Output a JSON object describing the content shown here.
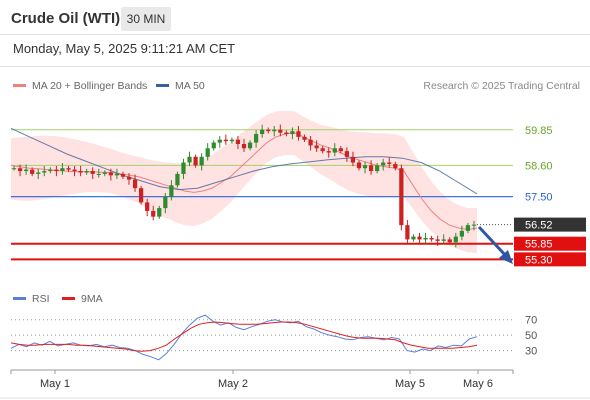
{
  "header": {
    "title": "Crude Oil (WTI)",
    "timeframe": "30 MIN"
  },
  "datetime": "Monday, May 5, 2025 9:11:21 AM CET",
  "legend": {
    "bollinger": {
      "label": "MA 20 + Bollinger Bands",
      "color": "#f08080"
    },
    "ma50": {
      "label": "MA 50",
      "color": "#3a5f9e"
    }
  },
  "credit": "Research © 2025 Trading Central",
  "rsi_legend": {
    "rsi": {
      "label": "RSI",
      "color": "#5b7fd8"
    },
    "ma9": {
      "label": "9MA",
      "color": "#e02020"
    }
  },
  "colors": {
    "green_level": "#a6d16a",
    "blue_level": "#2a62d9",
    "red_level": "#e01010",
    "current_price_bg": "#333333",
    "candle_up": "#2e8b2e",
    "candle_down": "#cc2222",
    "arrow": "#2d57a6",
    "band_fill": "#ffd8d8"
  },
  "chart_data": [
    {
      "type": "line",
      "title": "Crude Oil (WTI)",
      "timeframe": "30 MIN",
      "x_ticks": [
        "May 1",
        "May 2",
        "May 5",
        "May 6"
      ],
      "ylim": [
        54.4,
        61.0
      ],
      "levels": [
        {
          "value": 59.85,
          "label": "59.85",
          "kind": "resistance"
        },
        {
          "value": 58.6,
          "label": "58.60",
          "kind": "resistance"
        },
        {
          "value": 57.5,
          "label": "57.50",
          "kind": "pivot"
        },
        {
          "value": 56.52,
          "label": "56.52",
          "kind": "current"
        },
        {
          "value": 55.85,
          "label": "55.85",
          "kind": "support"
        },
        {
          "value": 55.3,
          "label": "55.30",
          "kind": "support"
        }
      ],
      "series": [
        {
          "name": "Price",
          "values": [
            58.5,
            58.4,
            58.45,
            58.3,
            58.35,
            58.4,
            58.45,
            58.4,
            58.5,
            58.45,
            58.4,
            58.35,
            58.4,
            58.3,
            58.3,
            58.35,
            58.25,
            58.3,
            58.2,
            58.1,
            57.8,
            57.3,
            57.0,
            56.8,
            57.1,
            57.5,
            57.9,
            58.3,
            58.7,
            58.9,
            58.6,
            58.9,
            59.2,
            59.4,
            59.5,
            59.45,
            59.5,
            59.35,
            59.2,
            59.4,
            59.7,
            59.85,
            59.8,
            59.85,
            59.75,
            59.7,
            59.8,
            59.6,
            59.5,
            59.3,
            59.2,
            59.1,
            59.05,
            59.2,
            59.1,
            58.9,
            58.7,
            58.5,
            58.6,
            58.4,
            58.6,
            58.7,
            58.65,
            58.5,
            56.5,
            56.0,
            56.1,
            56.0,
            56.05,
            56.0,
            55.95,
            56.0,
            55.9,
            56.1,
            56.3,
            56.5,
            56.52
          ]
        },
        {
          "name": "MA 20",
          "values": [
            58.6,
            58.55,
            58.5,
            58.48,
            58.45,
            58.42,
            58.4,
            58.38,
            58.38,
            58.37,
            58.36,
            58.35,
            58.3,
            58.25,
            58.2,
            58.1,
            58.0,
            57.9,
            57.8,
            57.7,
            57.65,
            57.7,
            57.8,
            58.0,
            58.2,
            58.5,
            58.8,
            59.1,
            59.4,
            59.6,
            59.7,
            59.75,
            59.6,
            59.45,
            59.3,
            59.2,
            59.05,
            58.9,
            58.8,
            58.7,
            58.6,
            58.55,
            58.5,
            58.4,
            57.9,
            57.4,
            57.0,
            56.7,
            56.5,
            56.4,
            56.35,
            56.4
          ]
        },
        {
          "name": "MA 50",
          "values": [
            59.9,
            59.6,
            59.3,
            59.0,
            58.75,
            58.5,
            58.25,
            58.05,
            57.85,
            57.75,
            57.8,
            58.0,
            58.2,
            58.4,
            58.55,
            58.65,
            58.72,
            58.8,
            58.85,
            58.9,
            58.9,
            58.85,
            58.7,
            58.4,
            58.0,
            57.6
          ]
        }
      ]
    },
    {
      "type": "line",
      "title": "RSI",
      "ylim": [
        0,
        100
      ],
      "y_ticks": [
        70,
        50,
        30
      ],
      "series": [
        {
          "name": "RSI",
          "values": [
            33,
            38,
            35,
            40,
            37,
            42,
            36,
            38,
            40,
            37,
            36,
            38,
            35,
            37,
            34,
            33,
            30,
            25,
            22,
            18,
            26,
            38,
            52,
            63,
            72,
            76,
            68,
            63,
            66,
            60,
            57,
            61,
            64,
            68,
            70,
            67,
            66,
            68,
            61,
            58,
            53,
            50,
            48,
            45,
            44,
            47,
            48,
            46,
            44,
            47,
            45,
            30,
            28,
            32,
            30,
            36,
            34,
            37,
            36,
            45,
            48
          ]
        },
        {
          "name": "9MA",
          "values": [
            40,
            38,
            37,
            37,
            38,
            38,
            38,
            38,
            37,
            37,
            36,
            35,
            34,
            33,
            32,
            30,
            29,
            30,
            33,
            37,
            45,
            52,
            59,
            64,
            66,
            67,
            66,
            65,
            64,
            64,
            64,
            65,
            66,
            67,
            67,
            66,
            64,
            61,
            58,
            55,
            52,
            49,
            47,
            46,
            46,
            46,
            45,
            44,
            40,
            37,
            35,
            33,
            33,
            33,
            33,
            34,
            35,
            37
          ]
        }
      ]
    }
  ]
}
